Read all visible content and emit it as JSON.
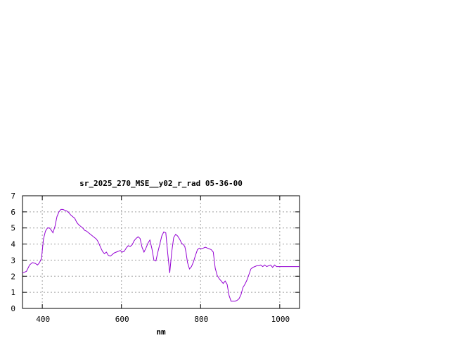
{
  "chart_data": {
    "type": "line",
    "title": "sr_2025_270_MSE__y02_r_rad 05-36-00",
    "xlabel": "nm",
    "ylabel": "",
    "xlim": [
      350,
      1050
    ],
    "ylim": [
      0,
      7
    ],
    "xticks": [
      400,
      600,
      800,
      1000
    ],
    "yticks": [
      0,
      1,
      2,
      3,
      4,
      5,
      6,
      7
    ],
    "grid": true,
    "series": [
      {
        "color": "#9400d3",
        "x": [
          350,
          360,
          368,
          375,
          382,
          388,
          393,
          398,
          403,
          408,
          413,
          418,
          423,
          427,
          432,
          437,
          442,
          447,
          452,
          457,
          462,
          467,
          472,
          477,
          482,
          487,
          492,
          497,
          502,
          507,
          512,
          517,
          522,
          527,
          532,
          537,
          542,
          547,
          552,
          557,
          562,
          567,
          572,
          577,
          582,
          587,
          592,
          597,
          602,
          607,
          612,
          617,
          622,
          627,
          632,
          637,
          642,
          647,
          652,
          657,
          662,
          667,
          672,
          677,
          682,
          687,
          692,
          697,
          702,
          707,
          712,
          717,
          722,
          727,
          732,
          737,
          742,
          747,
          752,
          757,
          760,
          763,
          767,
          772,
          777,
          782,
          787,
          792,
          797,
          802,
          807,
          812,
          817,
          822,
          827,
          832,
          837,
          842,
          847,
          852,
          857,
          862,
          867,
          872,
          877,
          882,
          887,
          892,
          897,
          902,
          907,
          912,
          917,
          922,
          927,
          932,
          937,
          942,
          947,
          952,
          957,
          962,
          967,
          972,
          977,
          982,
          987,
          992,
          997,
          1002,
          1007,
          1012,
          1017,
          1022,
          1027,
          1032,
          1037,
          1042,
          1047,
          1050
        ],
        "y": [
          2.2,
          2.3,
          2.7,
          2.85,
          2.8,
          2.7,
          2.85,
          3.1,
          4.3,
          4.8,
          5.0,
          5.0,
          4.85,
          4.7,
          5.1,
          5.7,
          6.0,
          6.15,
          6.15,
          6.1,
          6.05,
          5.95,
          5.8,
          5.7,
          5.6,
          5.35,
          5.2,
          5.1,
          5.0,
          4.85,
          4.8,
          4.7,
          4.6,
          4.5,
          4.4,
          4.3,
          4.1,
          3.8,
          3.55,
          3.4,
          3.5,
          3.3,
          3.25,
          3.35,
          3.45,
          3.5,
          3.55,
          3.6,
          3.5,
          3.55,
          3.75,
          3.9,
          3.85,
          3.95,
          4.2,
          4.35,
          4.45,
          4.35,
          3.8,
          3.5,
          3.75,
          4.05,
          4.25,
          3.7,
          3.0,
          2.95,
          3.5,
          4.0,
          4.5,
          4.75,
          4.7,
          3.4,
          2.2,
          3.5,
          4.4,
          4.6,
          4.5,
          4.3,
          4.05,
          3.95,
          3.85,
          3.5,
          2.85,
          2.45,
          2.6,
          2.9,
          3.3,
          3.65,
          3.75,
          3.7,
          3.75,
          3.8,
          3.75,
          3.7,
          3.65,
          3.5,
          2.5,
          2.05,
          1.85,
          1.7,
          1.55,
          1.7,
          1.5,
          0.8,
          0.45,
          0.45,
          0.45,
          0.5,
          0.6,
          0.85,
          1.3,
          1.5,
          1.75,
          2.1,
          2.45,
          2.55,
          2.6,
          2.65,
          2.65,
          2.7,
          2.6,
          2.7,
          2.6,
          2.65,
          2.7,
          2.55,
          2.7,
          2.6,
          2.6,
          2.6,
          2.6,
          2.6,
          2.6,
          2.6,
          2.6,
          2.6,
          2.6,
          2.6,
          2.6,
          2.6
        ]
      }
    ]
  }
}
